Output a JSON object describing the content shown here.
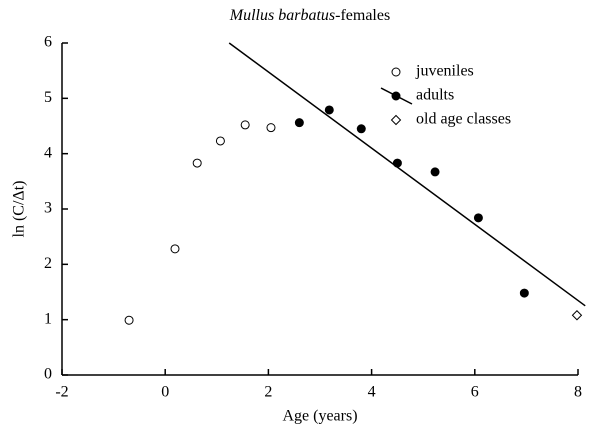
{
  "chart_data": {
    "type": "scatter",
    "title_parts": [
      "Mullus barbatus",
      "-females"
    ],
    "xlabel": "Age (years)",
    "ylabel": "ln (C/Δt)",
    "xlim": [
      -2,
      8
    ],
    "ylim": [
      0,
      6
    ],
    "xticks": [
      -2,
      0,
      2,
      4,
      6,
      8
    ],
    "yticks": [
      0,
      1,
      2,
      3,
      4,
      5,
      6
    ],
    "series": [
      {
        "name": "juveniles",
        "marker": "open-circle",
        "color": "#000000",
        "x": [
          -0.7,
          0.19,
          0.62,
          1.07,
          1.55,
          2.05
        ],
        "values": [
          0.99,
          2.28,
          3.83,
          4.23,
          4.52,
          4.47
        ]
      },
      {
        "name": "adults",
        "marker": "filled-circle",
        "color": "#000000",
        "x": [
          2.6,
          3.18,
          3.8,
          4.5,
          5.23,
          6.07,
          6.96
        ],
        "values": [
          4.56,
          4.79,
          4.45,
          3.83,
          3.67,
          2.84,
          1.48
        ]
      },
      {
        "name": "old age classes",
        "marker": "open-diamond",
        "color": "#000000",
        "x": [
          7.98
        ],
        "values": [
          1.08
        ]
      }
    ],
    "fit": {
      "x": [
        1.24,
        8.14
      ],
      "values": [
        6,
        1.25
      ],
      "color": "#000000"
    }
  }
}
